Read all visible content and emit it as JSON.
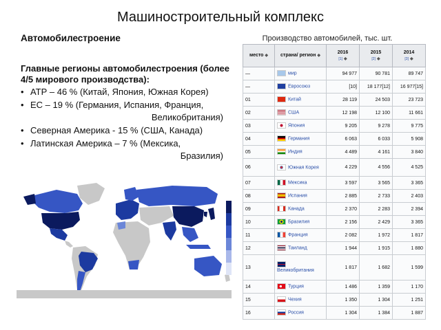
{
  "slide": {
    "title": "Машиностроительный комплекс",
    "section": "Автомобилестроение",
    "regions_heading": "Главные регионы автомобилестроения (более 4/5 мирового производства):",
    "regions": [
      {
        "text": "АТР – 46 % (Китай, Япония, Южная Корея)",
        "cont": ""
      },
      {
        "text": "ЕС – 19 % (Германия, Испания, Франция,",
        "cont": "Великобритания)"
      },
      {
        "text": "Северная Америка  - 15 % (США, Канада)",
        "cont": ""
      },
      {
        "text": "Латинская Америка – 7 % (Мексика,",
        "cont": "Бразилия)"
      }
    ]
  },
  "table": {
    "caption": "Производство автомобилей, тыс. шт.",
    "headers": {
      "place": "место",
      "country": "страна/ регион",
      "y2016": "2016",
      "y2015": "2015",
      "y2014": "2014",
      "ref2016": "[1]",
      "ref2015": "[2]",
      "ref2014": "[3]"
    },
    "rows": [
      {
        "place": "—",
        "country": "мир",
        "flag": "world",
        "v2016": "94 977",
        "v2015": "90 781",
        "v2014": "89 747"
      },
      {
        "place": "—",
        "country": "Евросоюз",
        "flag": "eu",
        "v2016": "[10]",
        "v2015": "18 177[12]",
        "v2014": "16 977[15]"
      },
      {
        "place": "01",
        "country": "Китай",
        "flag": "cn",
        "v2016": "28 119",
        "v2015": "24 503",
        "v2014": "23 723"
      },
      {
        "place": "02",
        "country": "США",
        "flag": "us",
        "v2016": "12 198",
        "v2015": "12 100",
        "v2014": "11 661"
      },
      {
        "place": "03",
        "country": "Япония",
        "flag": "jp",
        "v2016": "9 205",
        "v2015": "9 278",
        "v2014": "9 775"
      },
      {
        "place": "04",
        "country": "Германия",
        "flag": "de",
        "v2016": "6 063",
        "v2015": "6 033",
        "v2014": "5 908"
      },
      {
        "place": "05",
        "country": "Индия",
        "flag": "in",
        "v2016": "4 489",
        "v2015": "4 161",
        "v2014": "3 840"
      },
      {
        "place": "06",
        "country": "Южная Корея",
        "flag": "kr",
        "v2016": "4 229",
        "v2015": "4 556",
        "v2014": "4 525"
      },
      {
        "place": "07",
        "country": "Мексика",
        "flag": "mx",
        "v2016": "3 597",
        "v2015": "3 565",
        "v2014": "3 365"
      },
      {
        "place": "08",
        "country": "Испания",
        "flag": "es",
        "v2016": "2 885",
        "v2015": "2 733",
        "v2014": "2 403"
      },
      {
        "place": "09",
        "country": "Канада",
        "flag": "ca",
        "v2016": "2 370",
        "v2015": "2 283",
        "v2014": "2 394"
      },
      {
        "place": "10",
        "country": "Бразилия",
        "flag": "br",
        "v2016": "2 156",
        "v2015": "2 429",
        "v2014": "3 365"
      },
      {
        "place": "11",
        "country": "Франция",
        "flag": "fr",
        "v2016": "2 082",
        "v2015": "1 972",
        "v2014": "1 817"
      },
      {
        "place": "12",
        "country": "Таиланд",
        "flag": "th",
        "v2016": "1 944",
        "v2015": "1 915",
        "v2014": "1 880"
      },
      {
        "place": "13",
        "country": "Великобритания",
        "flag": "gb",
        "v2016": "1 817",
        "v2015": "1 682",
        "v2014": "1 599"
      },
      {
        "place": "14",
        "country": "Турция",
        "flag": "tr",
        "v2016": "1 486",
        "v2015": "1 359",
        "v2014": "1 170"
      },
      {
        "place": "15",
        "country": "Чехия",
        "flag": "cz",
        "v2016": "1 350",
        "v2015": "1 304",
        "v2014": "1 251"
      },
      {
        "place": "16",
        "country": "Россия",
        "flag": "ru",
        "v2016": "1 304",
        "v2015": "1 384",
        "v2014": "1 887"
      }
    ]
  },
  "map": {
    "ocean_color": "#ffffff",
    "no_data_color": "#c8c8c8",
    "scale_colors": [
      "#0b1a5e",
      "#1c3aa0",
      "#3656c4",
      "#6b86d8",
      "#a9b8ea",
      "#dfe5f7"
    ]
  }
}
